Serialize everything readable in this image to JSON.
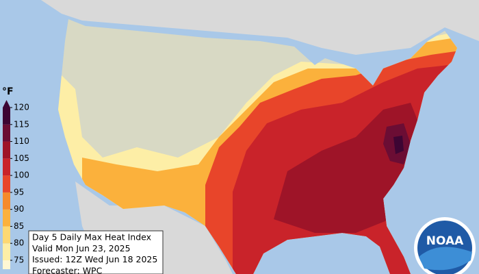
{
  "legend": {
    "unit": "°F",
    "ticks": [
      75,
      80,
      85,
      90,
      95,
      100,
      105,
      110,
      115,
      120
    ],
    "colors": [
      "#fdeea6",
      "#fdd873",
      "#fbb13c",
      "#f58a2c",
      "#e8452a",
      "#c9232a",
      "#9e1428",
      "#6b0d34",
      "#3d0533"
    ]
  },
  "info": {
    "lines": [
      "Day 5 Daily Max Heat Index",
      "Valid Mon Jun 23, 2025",
      "Issued: 12Z Wed Jun 18 2025",
      "Forecaster: WPC"
    ]
  },
  "logo": {
    "text": "NOAA"
  }
}
